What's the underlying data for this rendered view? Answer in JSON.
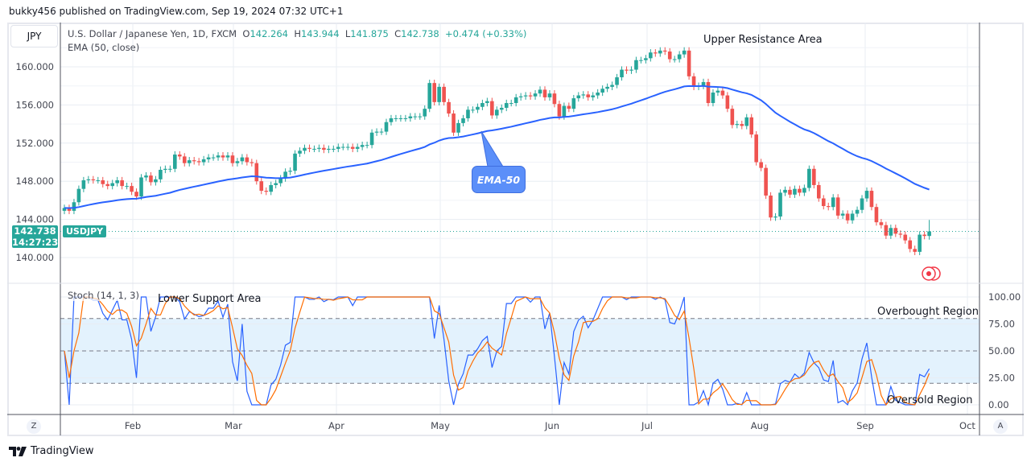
{
  "header": {
    "published": "bukky456 published on TradingView.com, Sep 19, 2024 07:32 UTC+1"
  },
  "symbol_box": "JPY",
  "legend": {
    "title": "U.S. Dollar / Japanese Yen, 1D, FXCM",
    "o_label": "O",
    "o": "142.264",
    "h_label": "H",
    "h": "143.944",
    "l_label": "L",
    "l": "141.875",
    "c_label": "C",
    "c": "142.738",
    "change": "+0.474 (+0.33%)",
    "ema": "EMA (50, close)",
    "stoch": "Stoch (14, 1, 3)"
  },
  "last_price": {
    "price": "142.738",
    "countdown": "14:27:23",
    "symbol": "USDJPY"
  },
  "annotations": {
    "upper": "Upper Resistance Area",
    "lower": "Lower Support Area",
    "overbought": "Overbought Region",
    "oversold": "Oversold Region",
    "ema_callout": "EMA-50"
  },
  "buttons": {
    "z": "Z",
    "a": "A"
  },
  "footer": {
    "brand": "TradingView"
  },
  "colors": {
    "up": "#26a69a",
    "down": "#ef5350",
    "ema": "#2962ff",
    "stoch_k": "#2962ff",
    "stoch_d": "#ff6d00",
    "band": "#e3f2fd"
  },
  "chart_data": [
    {
      "type": "candlestick",
      "title": "U.S. Dollar / Japanese Yen, 1D, FXCM",
      "x_start": "2024-01-11",
      "x_end": "2024-09-19",
      "x_ticks": [
        "Feb",
        "Mar",
        "Apr",
        "May",
        "Jun",
        "Jul",
        "Aug",
        "Sep",
        "Oct"
      ],
      "y_ticks": [
        "160.000",
        "156.000",
        "152.000",
        "148.000",
        "144.000",
        "140.000"
      ],
      "ylim": [
        138.5,
        162.5
      ],
      "grid": true,
      "last_bar": {
        "open": 142.264,
        "high": 143.944,
        "low": 141.875,
        "close": 142.738
      },
      "ema_period": 50,
      "closes": [
        145.2,
        144.9,
        145.8,
        147.2,
        148.1,
        148.2,
        148.1,
        148.1,
        147.7,
        147.5,
        147.8,
        148.1,
        147.5,
        147.5,
        146.9,
        146.4,
        148.4,
        148.6,
        147.9,
        148.2,
        149.2,
        149.3,
        149.3,
        150.8,
        150.6,
        149.9,
        150.2,
        150.1,
        150.0,
        150.3,
        150.5,
        150.5,
        150.7,
        150.5,
        150.7,
        149.9,
        150.1,
        150.5,
        150.0,
        149.9,
        148.0,
        147.0,
        146.9,
        147.6,
        147.8,
        148.3,
        149.0,
        149.1,
        150.9,
        151.2,
        151.5,
        151.4,
        151.4,
        151.5,
        151.3,
        151.4,
        151.4,
        151.6,
        151.6,
        151.6,
        151.4,
        151.6,
        151.8,
        151.8,
        153.1,
        153.2,
        153.2,
        154.2,
        154.6,
        154.6,
        154.6,
        154.6,
        154.8,
        154.8,
        154.8,
        155.6,
        158.3,
        156.3,
        157.9,
        156.3,
        155.1,
        153.1,
        154.1,
        154.6,
        155.5,
        155.5,
        155.8,
        156.2,
        156.4,
        154.9,
        155.5,
        155.7,
        156.2,
        156.2,
        156.8,
        156.9,
        157.0,
        156.9,
        157.2,
        157.6,
        156.8,
        157.2,
        156.1,
        154.8,
        155.9,
        155.6,
        156.7,
        157.0,
        157.1,
        156.8,
        157.0,
        157.3,
        157.7,
        157.9,
        158.1,
        158.9,
        159.7,
        159.6,
        159.7,
        160.7,
        160.7,
        160.9,
        161.5,
        161.4,
        161.7,
        161.6,
        160.8,
        160.8,
        161.3,
        161.7,
        159.0,
        157.9,
        158.0,
        158.4,
        156.2,
        157.3,
        157.5,
        157.0,
        155.6,
        153.9,
        154.0,
        153.8,
        154.7,
        152.9,
        150.0,
        149.4,
        146.5,
        144.2,
        144.3,
        146.8,
        147.1,
        146.6,
        147.2,
        146.8,
        147.3,
        149.3,
        147.6,
        146.2,
        145.4,
        145.3,
        146.3,
        144.4,
        144.6,
        143.9,
        144.6,
        145.0,
        146.2,
        147.0,
        145.3,
        143.7,
        143.4,
        142.3,
        143.1,
        142.5,
        142.4,
        141.8,
        140.9,
        140.6,
        142.4,
        142.264,
        142.738
      ]
    },
    {
      "type": "line",
      "title": "Stoch (14, 1, 3)",
      "y_ticks": [
        "100.00",
        "75.00",
        "50.00",
        "25.00",
        "0.00"
      ],
      "ylim": [
        0,
        100
      ],
      "levels": [
        80,
        50,
        20
      ],
      "series": [
        {
          "role": "%K"
        },
        {
          "role": "%D"
        }
      ]
    }
  ]
}
